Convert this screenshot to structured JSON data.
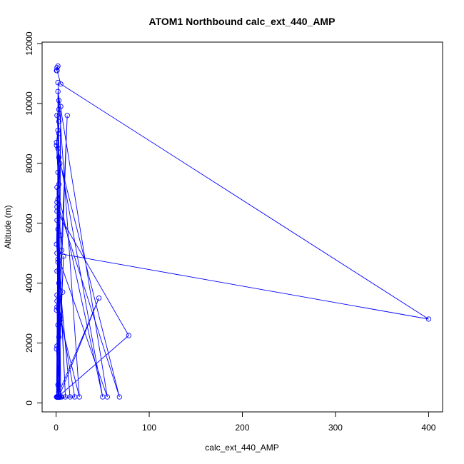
{
  "chart_data": {
    "type": "line",
    "title": "ATOM1 Northbound calc_ext_440_AMP",
    "xlabel": "calc_ext_440_AMP",
    "ylabel": "Altitude (m)",
    "xlim": [
      -15,
      415
    ],
    "ylim": [
      -300,
      12050
    ],
    "xticks": [
      0,
      100,
      200,
      300,
      400
    ],
    "yticks": [
      0,
      2000,
      4000,
      6000,
      8000,
      10000,
      12000
    ],
    "grid": false,
    "legend": "none",
    "marker": "open-circle",
    "color": "#0000ff",
    "series": [
      {
        "x": [
          2,
          3,
          1,
          2,
          0.5,
          4,
          3,
          2,
          1,
          5,
          6,
          2,
          1,
          3,
          7,
          1,
          0.5,
          4,
          5,
          2,
          12,
          3,
          1,
          0.5,
          2,
          6,
          1,
          3,
          0.5,
          2,
          4,
          1,
          10,
          2,
          1,
          3,
          0.5,
          15,
          2,
          1,
          5,
          3,
          20,
          1,
          2,
          0.5,
          3,
          25,
          1,
          2,
          8,
          1,
          46,
          3,
          1,
          78,
          2,
          1,
          50,
          2,
          5,
          1,
          68,
          3,
          1,
          2,
          55,
          1,
          400,
          5,
          1,
          2,
          1,
          0.5
        ],
        "y": [
          10700,
          9800,
          9600,
          9100,
          8700,
          8000,
          7300,
          6800,
          6550,
          5600,
          5100,
          4800,
          4400,
          4000,
          3700,
          3400,
          3100,
          2900,
          2800,
          2600,
          9600,
          2200,
          1900,
          1800,
          600,
          200,
          200,
          9400,
          8600,
          7700,
          190,
          6100,
          200,
          5800,
          200,
          9000,
          5300,
          200,
          4700,
          200,
          9900,
          190,
          200,
          3600,
          190,
          200,
          10100,
          200,
          3200,
          200,
          4900,
          200,
          3500,
          200,
          6400,
          2250,
          200,
          7200,
          200,
          8500,
          200,
          6700,
          200,
          8200,
          190,
          10400,
          200,
          5000,
          2800,
          10650,
          11100,
          11250,
          11200,
          11100
        ]
      }
    ]
  }
}
